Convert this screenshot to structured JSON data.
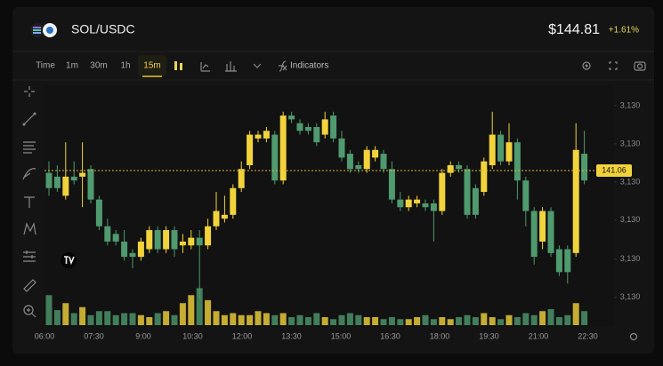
{
  "header": {
    "pair": "SOL/USDC",
    "price": "$144.81",
    "change": "+1.61%"
  },
  "toolbar": {
    "intervals": [
      "Time",
      "1m",
      "30m",
      "1h",
      "15m"
    ],
    "active_interval": 4,
    "indicators": "Indicators"
  },
  "chart_data": {
    "type": "candlestick",
    "colors": {
      "up": "#f2d33c",
      "down": "#4f9a6e"
    },
    "open": [
      141.0,
      140.9,
      140.4,
      140.9,
      140.9,
      141.1,
      140.3,
      139.6,
      139.4,
      139.2,
      138.9,
      138.8,
      139.0,
      139.5,
      139.0,
      139.5,
      139.1,
      139.1,
      139.3,
      139.1,
      139.6,
      139.8,
      139.9,
      140.6,
      141.2,
      141.9,
      141.9,
      142.0,
      140.8,
      142.5,
      142.3,
      142.2,
      142.2,
      142.0,
      142.5,
      141.9,
      141.5,
      141.2,
      141.1,
      141.4,
      141.5,
      141.1,
      140.3,
      140.1,
      140.2,
      140.2,
      140.2,
      140.0,
      141.0,
      141.2,
      141.1,
      140.6,
      140.5,
      141.2,
      142.0,
      141.3,
      141.8,
      140.8,
      140.0,
      139.2,
      140.0,
      139.0,
      139.0,
      138.9,
      141.5
    ],
    "high": [
      141.3,
      141.2,
      141.8,
      141.3,
      141.8,
      141.2,
      140.4,
      139.8,
      139.5,
      139.5,
      139.0,
      139.3,
      139.6,
      139.6,
      139.6,
      139.6,
      139.4,
      139.5,
      139.5,
      139.8,
      140.5,
      140.4,
      140.7,
      141.3,
      142.1,
      142.1,
      142.2,
      142.1,
      142.6,
      142.6,
      142.4,
      142.3,
      142.3,
      142.6,
      142.6,
      142.1,
      141.6,
      141.3,
      141.7,
      141.7,
      141.6,
      141.3,
      140.5,
      140.4,
      140.4,
      140.3,
      140.3,
      141.1,
      141.3,
      141.3,
      141.2,
      140.7,
      141.4,
      142.6,
      142.1,
      142.3,
      141.9,
      140.9,
      140.1,
      140.1,
      140.1,
      139.1,
      139.1,
      142.3,
      142.1
    ],
    "low": [
      140.4,
      140.5,
      140.3,
      140.7,
      140.1,
      140.2,
      139.5,
      139.1,
      139.1,
      138.7,
      138.5,
      138.7,
      138.9,
      138.9,
      138.9,
      138.8,
      138.9,
      139.0,
      137.7,
      139.0,
      139.5,
      139.7,
      139.8,
      140.5,
      141.1,
      141.8,
      141.8,
      140.7,
      140.7,
      142.3,
      142.0,
      142.0,
      141.7,
      141.9,
      141.8,
      141.3,
      141.0,
      141.0,
      141.0,
      141.3,
      141.0,
      140.2,
      140.0,
      140.0,
      140.1,
      140.0,
      139.2,
      139.9,
      140.9,
      141.0,
      139.8,
      139.8,
      140.4,
      141.1,
      141.2,
      141.2,
      140.3,
      139.6,
      138.6,
      139.0,
      138.8,
      138.3,
      138.1,
      138.8,
      140.7
    ],
    "close": [
      140.6,
      140.6,
      140.9,
      140.8,
      141.0,
      140.3,
      139.6,
      139.2,
      139.2,
      138.8,
      138.8,
      139.2,
      139.5,
      139.0,
      139.5,
      139.0,
      139.2,
      139.3,
      139.1,
      139.6,
      140.0,
      139.9,
      140.6,
      141.1,
      142.0,
      142.0,
      142.1,
      140.8,
      142.5,
      142.4,
      142.1,
      142.1,
      141.8,
      142.4,
      141.9,
      141.4,
      141.1,
      141.1,
      141.6,
      141.6,
      141.1,
      140.3,
      140.1,
      140.3,
      140.3,
      140.1,
      140.0,
      141.0,
      141.2,
      141.1,
      139.9,
      139.9,
      141.3,
      142.0,
      141.3,
      141.8,
      140.8,
      140.0,
      138.8,
      140.0,
      138.9,
      138.4,
      138.4,
      141.6,
      140.8
    ],
    "volume": [
      30,
      15,
      22,
      12,
      18,
      10,
      14,
      14,
      10,
      12,
      12,
      10,
      8,
      12,
      14,
      10,
      22,
      30,
      37,
      25,
      14,
      10,
      12,
      10,
      10,
      14,
      12,
      10,
      12,
      8,
      10,
      8,
      12,
      8,
      6,
      10,
      12,
      10,
      8,
      8,
      6,
      8,
      6,
      6,
      8,
      10,
      6,
      8,
      6,
      8,
      10,
      8,
      12,
      8,
      6,
      10,
      8,
      12,
      10,
      14,
      16,
      8,
      10,
      22,
      14
    ],
    "vlim": [
      0,
      40
    ],
    "ylim": [
      137.5,
      143.2
    ],
    "yticks": [
      {
        "value": 142.76,
        "label": "3,130"
      },
      {
        "value": 141.76,
        "label": "3,130"
      },
      {
        "value": 140.76,
        "label": "3,130"
      },
      {
        "value": 139.76,
        "label": "3,130"
      },
      {
        "value": 138.74,
        "label": "3,130"
      },
      {
        "value": 137.74,
        "label": "3,130"
      }
    ],
    "last_price": 141.06,
    "x_labels": [
      "06:00",
      "07:30",
      "9:00",
      "10:30",
      "12:00",
      "13:30",
      "15:00",
      "16:30",
      "18:00",
      "19:30",
      "21:00",
      "22:30"
    ]
  }
}
